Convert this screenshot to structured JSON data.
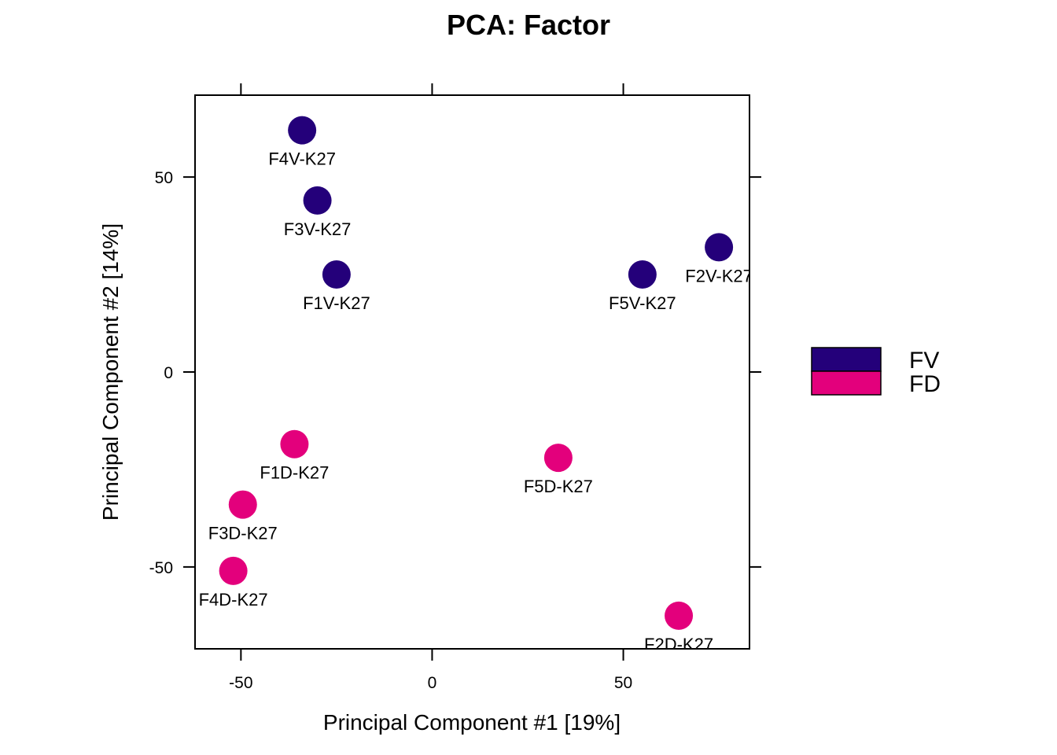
{
  "chart_data": {
    "type": "scatter",
    "title": "PCA: Factor",
    "xlabel": "Principal Component #1 [19%]",
    "ylabel": "Principal Component #2 [14%]",
    "xlim": [
      -62,
      83
    ],
    "ylim": [
      -71,
      71
    ],
    "xticks": [
      -50,
      0,
      50
    ],
    "yticks": [
      -50,
      0,
      50
    ],
    "grid": false,
    "legend_position": "right",
    "series": [
      {
        "name": "FV",
        "color": "#24007A",
        "points": [
          {
            "label": "F4V-K27",
            "x": -34,
            "y": 62
          },
          {
            "label": "F3V-K27",
            "x": -30,
            "y": 44
          },
          {
            "label": "F1V-K27",
            "x": -25,
            "y": 25
          },
          {
            "label": "F5V-K27",
            "x": 55,
            "y": 25
          },
          {
            "label": "F2V-K27",
            "x": 75,
            "y": 32
          }
        ]
      },
      {
        "name": "FD",
        "color": "#E3007C",
        "points": [
          {
            "label": "F1D-K27",
            "x": -36,
            "y": -18.5
          },
          {
            "label": "F3D-K27",
            "x": -49.5,
            "y": -34
          },
          {
            "label": "F4D-K27",
            "x": -52,
            "y": -51
          },
          {
            "label": "F5D-K27",
            "x": 33,
            "y": -22
          },
          {
            "label": "F2D-K27",
            "x": 64.5,
            "y": -62.5
          }
        ]
      }
    ]
  }
}
